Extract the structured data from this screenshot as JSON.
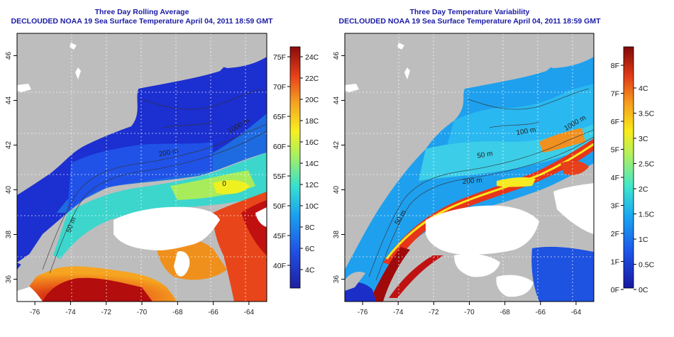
{
  "panels": [
    {
      "title_line1": "Three Day Rolling Average",
      "title_line2": "DECLOUDED NOAA 19 Sea Surface Temperature April 04, 2011 18:59 GMT",
      "x_ticks": [
        "-76",
        "-74",
        "-72",
        "-70",
        "-68",
        "-66",
        "-64"
      ],
      "y_ticks": [
        "36",
        "38",
        "40",
        "42",
        "44",
        "46"
      ],
      "colorbar_left_labels": [
        "75F",
        "70F",
        "65F",
        "60F",
        "55F",
        "50F",
        "45F",
        "40F"
      ],
      "colorbar_right_labels": [
        "24C",
        "22C",
        "20C",
        "18C",
        "16C",
        "14C",
        "12C",
        "10C",
        "8C",
        "6C",
        "4C"
      ],
      "contour_labels": [
        "1000 m",
        "200 m",
        "50 m",
        "0"
      ]
    },
    {
      "title_line1": "Three Day Temperature Variability",
      "title_line2": "DECLOUDED NOAA 19 Sea Surface Temperature April 04, 2011 18:59 GMT",
      "x_ticks": [
        "-76",
        "-74",
        "-72",
        "-70",
        "-68",
        "-66",
        "-64"
      ],
      "y_ticks": [
        "36",
        "38",
        "40",
        "42",
        "44",
        "46"
      ],
      "colorbar_left_labels": [
        "8F",
        "7F",
        "6F",
        "5F",
        "4F",
        "3F",
        "2F",
        "1F",
        "0F"
      ],
      "colorbar_right_labels": [
        "4C",
        "3.5C",
        "3C",
        "2.5C",
        "2C",
        "1.5C",
        "1C",
        "0.5C",
        "0C"
      ],
      "contour_labels": [
        "1000 m",
        "100 m",
        "50 m",
        "200 m",
        "50 m"
      ]
    }
  ],
  "colors": {
    "title": "#1a1aa6",
    "land": "#bdbdbd",
    "missing": "#ffffff"
  }
}
